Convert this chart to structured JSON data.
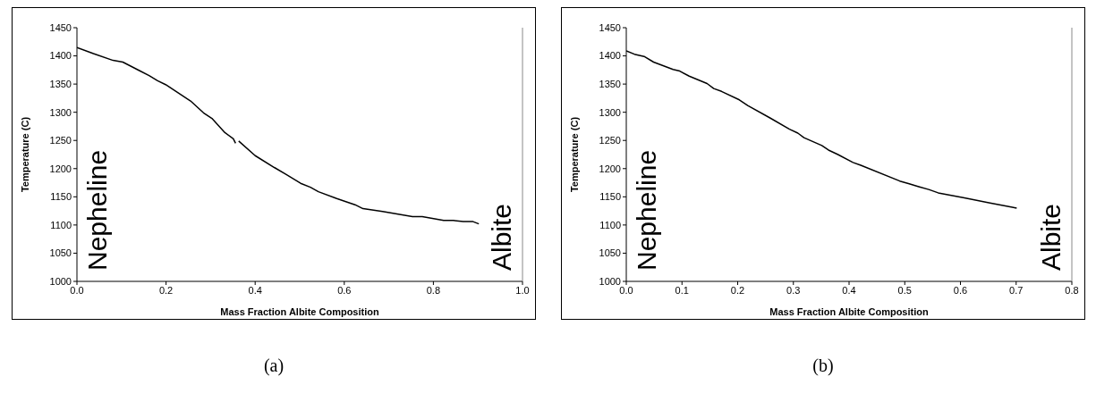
{
  "chart_data": [
    {
      "type": "line",
      "xlabel": "Mass Fraction Albite Composition",
      "ylabel": "Temperature (C)",
      "annotations": [
        "Nepheline",
        "Albite",
        "(a)"
      ],
      "series": [
        {
          "color": "#000000",
          "x": [
            0,
            0.037,
            0.081,
            0.103,
            0.14,
            0.162,
            0.181,
            0.199,
            0.255,
            0.284,
            0.303,
            0.317,
            0.332,
            0.351,
            0.356,
            0.36,
            0.363,
            0.4,
            0.443,
            0.469,
            0.502,
            0.524,
            0.542,
            0.583,
            0.624,
            0.642,
            0.686,
            0.753,
            0.775,
            0.823,
            0.845,
            0.867,
            0.889,
            0.902
          ],
          "values": [
            1415,
            1404,
            1392,
            1389,
            1374,
            1365,
            1356,
            1349,
            1320,
            1299,
            1289,
            1277,
            1264,
            1253,
            1245,
            null,
            1249,
            1223,
            1202,
            1190,
            1174,
            1167,
            1159,
            1147,
            1136,
            1129,
            1124,
            1115,
            1115,
            1108,
            1108,
            1106,
            1106,
            1102
          ]
        }
      ],
      "xlim": [
        0,
        1
      ],
      "xticks": [
        {
          "value": 0,
          "label": "0.0"
        },
        {
          "value": 0.2,
          "label": "0.2"
        },
        {
          "value": 0.4,
          "label": "0.4"
        },
        {
          "value": 0.6,
          "label": "0.6"
        },
        {
          "value": 0.8,
          "label": "0.8"
        },
        {
          "value": 1,
          "label": "1.0"
        }
      ],
      "ylim": [
        1000,
        1450
      ],
      "yticks": [
        1000,
        1050,
        1100,
        1150,
        1200,
        1250,
        1300,
        1350,
        1400,
        1450
      ],
      "grid": false,
      "legend": false,
      "marker": "none",
      "line_style": "solid"
    },
    {
      "type": "line",
      "xlabel": "Mass Fraction Albite Composition",
      "ylabel": "Temperature (C)",
      "annotations": [
        "Nepheline",
        "Albite",
        "(b)"
      ],
      "series": [
        {
          "color": "#000000",
          "x": [
            0,
            0.0145,
            0.032,
            0.049,
            0.084,
            0.096,
            0.113,
            0.145,
            0.157,
            0.171,
            0.203,
            0.218,
            0.258,
            0.293,
            0.308,
            0.319,
            0.351,
            0.363,
            0.38,
            0.407,
            0.421,
            0.491,
            0.508,
            0.525,
            0.543,
            0.56,
            0.607,
            0.653,
            0.691,
            0.701
          ],
          "values": [
            1409,
            1403,
            1399,
            1389,
            1376,
            1373,
            1364,
            1351,
            1342,
            1337,
            1322,
            1312,
            1290,
            1270,
            1263,
            1255,
            1241,
            1233,
            1225,
            1211,
            1206,
            1178,
            1173,
            1168,
            1163,
            1157,
            1148,
            1139,
            1132,
            1130
          ]
        }
      ],
      "xlim": [
        0,
        0.8
      ],
      "xticks": [
        {
          "value": 0,
          "label": "0.0"
        },
        {
          "value": 0.1,
          "label": "0.1"
        },
        {
          "value": 0.2,
          "label": "0.2"
        },
        {
          "value": 0.3,
          "label": "0.3"
        },
        {
          "value": 0.4,
          "label": "0.4"
        },
        {
          "value": 0.5,
          "label": "0.5"
        },
        {
          "value": 0.6,
          "label": "0.6"
        },
        {
          "value": 0.7,
          "label": "0.7"
        },
        {
          "value": 0.8,
          "label": "0.8"
        }
      ],
      "ylim": [
        1000,
        1450
      ],
      "yticks": [
        1000,
        1050,
        1100,
        1150,
        1200,
        1250,
        1300,
        1350,
        1400,
        1450
      ],
      "grid": false,
      "legend": false,
      "marker": "none",
      "line_style": "solid"
    }
  ]
}
